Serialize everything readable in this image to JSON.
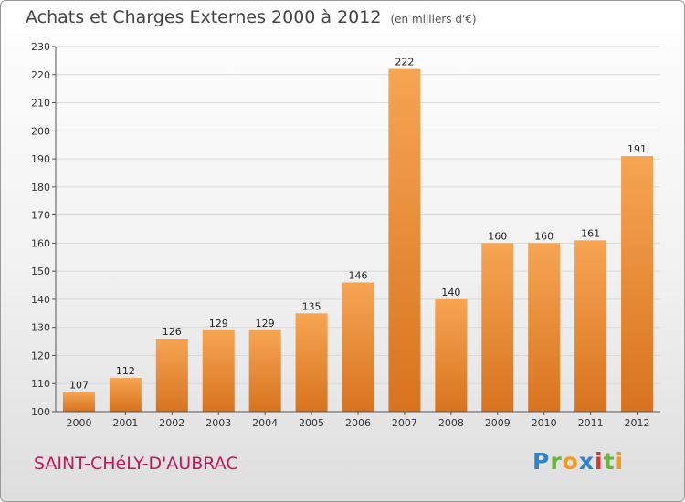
{
  "title": "Achats et Charges Externes 2000 à 2012",
  "unit": "(en milliers d'€)",
  "commune": "SAINT-CHéLY-D'AUBRAC",
  "logo": [
    "P",
    "r",
    "o",
    "x",
    "i",
    "t",
    "i"
  ],
  "colors": {
    "bar_top": "#f6a553",
    "bar_bottom": "#d8731f",
    "grid": "#d9d9d9",
    "commune": "#c2185b"
  },
  "chart_data": {
    "type": "bar",
    "categories": [
      "2000",
      "2001",
      "2002",
      "2003",
      "2004",
      "2005",
      "2006",
      "2007",
      "2008",
      "2009",
      "2010",
      "2011",
      "2012"
    ],
    "values": [
      107,
      112,
      126,
      129,
      129,
      135,
      146,
      222,
      140,
      160,
      160,
      161,
      191
    ],
    "data_labels": [
      "107",
      "112",
      "126",
      "129",
      "129",
      "135",
      "146",
      "222",
      "140",
      "160",
      "160",
      "161",
      "191"
    ],
    "yticks": [
      100,
      110,
      120,
      130,
      140,
      150,
      160,
      170,
      180,
      190,
      200,
      210,
      220,
      230
    ],
    "ylim": [
      100,
      230
    ],
    "grid": true,
    "title": "Achats et Charges Externes 2000 à 2012",
    "xlabel": "",
    "ylabel": ""
  }
}
